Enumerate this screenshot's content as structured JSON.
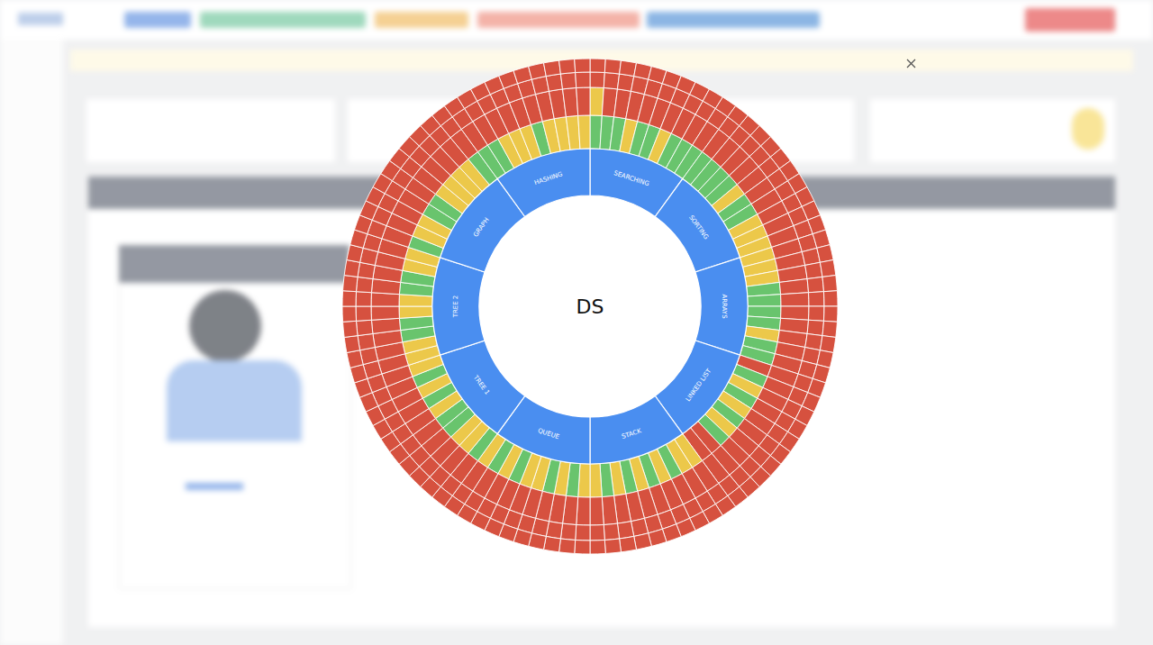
{
  "chart_data": {
    "type": "sunburst",
    "center_label": "DS",
    "colors": {
      "G": "#69c46d",
      "Y": "#ecc84a",
      "R": "#d6513f"
    },
    "topics": [
      {
        "label": "SEARCHING",
        "rings": [
          [
            "G",
            "G",
            "G",
            "Y",
            "G",
            "G",
            "Y",
            "G",
            "G",
            "G"
          ],
          [
            "Y",
            "R",
            "R",
            "R",
            "R",
            "R",
            "R",
            "R",
            "R",
            "R"
          ],
          [
            "R",
            "R",
            "R",
            "R",
            "R",
            "R",
            "R",
            "R",
            "R",
            "R"
          ],
          [
            "R",
            "R",
            "R",
            "R",
            "R",
            "R",
            "R",
            "R",
            "R",
            "R"
          ]
        ]
      },
      {
        "label": "SORTING",
        "rings": [
          [
            "G",
            "G",
            "G",
            "G",
            "Y",
            "G",
            "G",
            "Y",
            "Y",
            "Y"
          ],
          [
            "R",
            "R",
            "R",
            "R",
            "R",
            "R",
            "R",
            "R",
            "R",
            "R"
          ],
          [
            "R",
            "R",
            "R",
            "R",
            "R",
            "R",
            "R",
            "R",
            "R",
            "R"
          ],
          [
            "R",
            "R",
            "R",
            "R",
            "R",
            "R",
            "R",
            "R",
            "R",
            "R"
          ]
        ]
      },
      {
        "label": "ARRAYS",
        "rings": [
          [
            "Y",
            "Y",
            "Y",
            "G",
            "G",
            "G",
            "G",
            "Y",
            "G",
            "G"
          ],
          [
            "R",
            "R",
            "R",
            "R",
            "R",
            "R",
            "R",
            "R",
            "R",
            "R"
          ],
          [
            "R",
            "R",
            "R",
            "R",
            "R",
            "R",
            "R",
            "R",
            "R",
            "R"
          ],
          [
            "R",
            "R",
            "R",
            "R",
            "R",
            "R",
            "R",
            "R",
            "R",
            "R"
          ]
        ]
      },
      {
        "label": "LINKED LIST",
        "rings": [
          [
            "R",
            "G",
            "Y",
            "G",
            "Y",
            "G",
            "Y",
            "G",
            "R",
            "R"
          ],
          [
            "R",
            "R",
            "R",
            "R",
            "R",
            "R",
            "R",
            "R",
            "R",
            "R"
          ],
          [
            "R",
            "R",
            "R",
            "R",
            "R",
            "R",
            "R",
            "R",
            "R",
            "R"
          ],
          [
            "R",
            "R",
            "R",
            "R",
            "R",
            "R",
            "R",
            "R",
            "R",
            "R"
          ]
        ]
      },
      {
        "label": "STACK",
        "rings": [
          [
            "Y",
            "Y",
            "G",
            "Y",
            "G",
            "Y",
            "G",
            "Y",
            "G",
            "Y"
          ],
          [
            "R",
            "R",
            "R",
            "R",
            "R",
            "R",
            "R",
            "R",
            "R",
            "R"
          ],
          [
            "R",
            "R",
            "R",
            "R",
            "R",
            "R",
            "R",
            "R",
            "R",
            "R"
          ],
          [
            "R",
            "R",
            "R",
            "R",
            "R",
            "R",
            "R",
            "R",
            "R",
            "R"
          ]
        ]
      },
      {
        "label": "QUEUE",
        "rings": [
          [
            "Y",
            "G",
            "Y",
            "G",
            "Y",
            "Y",
            "G",
            "Y",
            "G",
            "Y"
          ],
          [
            "R",
            "R",
            "R",
            "R",
            "R",
            "R",
            "R",
            "R",
            "R",
            "R"
          ],
          [
            "R",
            "R",
            "R",
            "R",
            "R",
            "R",
            "R",
            "R",
            "R",
            "R"
          ],
          [
            "R",
            "R",
            "R",
            "R",
            "R",
            "R",
            "R",
            "R",
            "R",
            "R"
          ]
        ]
      },
      {
        "label": "TREE 1",
        "rings": [
          [
            "G",
            "Y",
            "Y",
            "G",
            "G",
            "Y",
            "G",
            "Y",
            "G",
            "Y"
          ],
          [
            "R",
            "R",
            "R",
            "R",
            "R",
            "R",
            "R",
            "R",
            "R",
            "R"
          ],
          [
            "R",
            "R",
            "R",
            "R",
            "R",
            "R",
            "R",
            "R",
            "R",
            "R"
          ],
          [
            "R",
            "R",
            "R",
            "R",
            "R",
            "R",
            "R",
            "R",
            "R",
            "R"
          ]
        ]
      },
      {
        "label": "TREE 2",
        "rings": [
          [
            "Y",
            "Y",
            "G",
            "G",
            "Y",
            "Y",
            "G",
            "G",
            "Y",
            "Y"
          ],
          [
            "R",
            "R",
            "R",
            "R",
            "R",
            "R",
            "R",
            "R",
            "R",
            "R"
          ],
          [
            "R",
            "R",
            "R",
            "R",
            "R",
            "R",
            "R",
            "R",
            "R",
            "R"
          ],
          [
            "R",
            "R",
            "R",
            "R",
            "R",
            "R",
            "R",
            "R",
            "R",
            "R"
          ]
        ]
      },
      {
        "label": "GRAPH",
        "rings": [
          [
            "G",
            "Y",
            "Y",
            "G",
            "G",
            "Y",
            "Y",
            "Y",
            "Y",
            "G"
          ],
          [
            "R",
            "R",
            "R",
            "R",
            "R",
            "R",
            "R",
            "R",
            "R",
            "R"
          ],
          [
            "R",
            "R",
            "R",
            "R",
            "R",
            "R",
            "R",
            "R",
            "R",
            "R"
          ],
          [
            "R",
            "R",
            "R",
            "R",
            "R",
            "R",
            "R",
            "R",
            "R",
            "R"
          ]
        ]
      },
      {
        "label": "HASHING",
        "rings": [
          [
            "G",
            "G",
            "Y",
            "Y",
            "Y",
            "G",
            "Y",
            "Y",
            "Y",
            "Y"
          ],
          [
            "R",
            "R",
            "R",
            "R",
            "R",
            "R",
            "R",
            "R",
            "R",
            "R"
          ],
          [
            "R",
            "R",
            "R",
            "R",
            "R",
            "R",
            "R",
            "R",
            "R",
            "R"
          ],
          [
            "R",
            "R",
            "R",
            "R",
            "R",
            "R",
            "R",
            "R",
            "R",
            "R"
          ]
        ]
      }
    ]
  }
}
